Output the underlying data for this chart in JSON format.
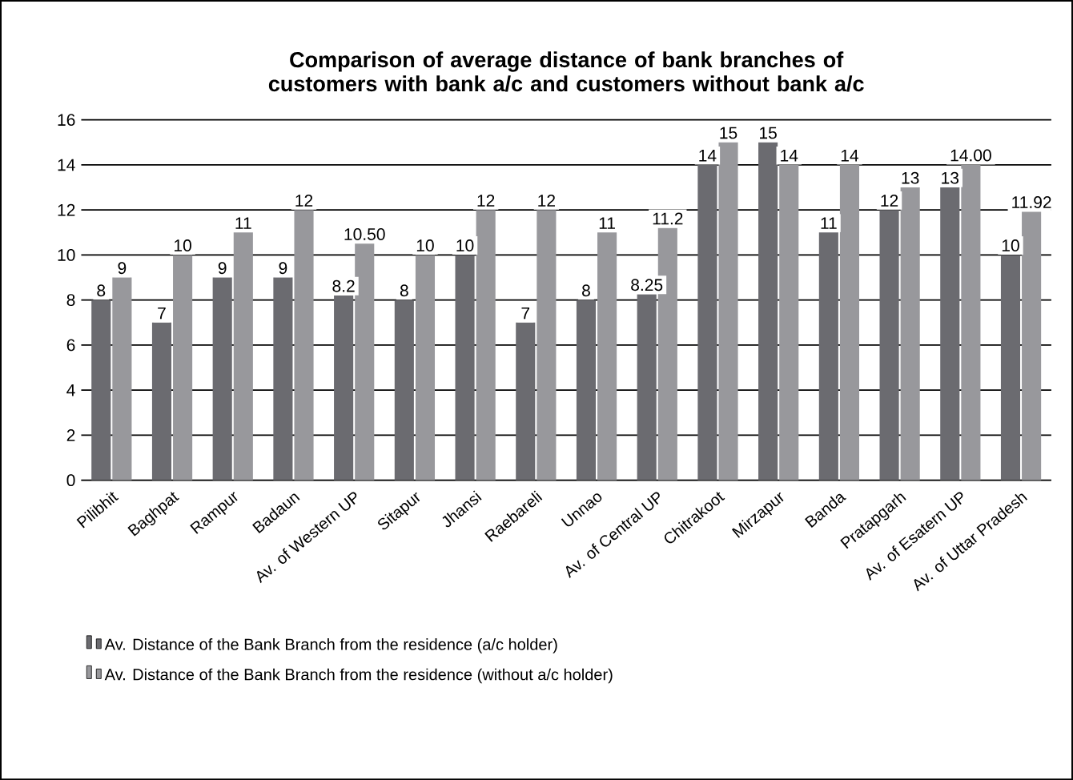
{
  "chart_data": {
    "type": "bar",
    "title": "Comparison of average distance of bank branches of customers with bank a/c and customers without bank a/c",
    "categories": [
      "Pilibhit",
      "Baghpat",
      "Rampur",
      "Badaun",
      "Av. of Western UP",
      "Sitapur",
      "Jhansi",
      "Raebareli",
      "Unnao",
      "Av. of Central UP",
      "Chitrakoot",
      "Mirzapur",
      "Banda",
      "Pratapgarh",
      "Av. of Esatern UP",
      "Av. of Uttar Pradesh"
    ],
    "series": [
      {
        "name": "Av. Distance of the Bank Branch from the residence (a/c holder)",
        "color": "#6b6b70",
        "values": [
          8,
          7,
          9,
          9,
          8.2,
          8,
          10,
          7,
          8,
          8.25,
          14,
          15,
          11,
          12,
          13,
          10
        ],
        "value_labels": [
          "8",
          "7",
          "9",
          "9",
          "8.2",
          "8",
          "10",
          "7",
          "8",
          "8.25",
          "14",
          "15",
          "11",
          "12",
          "13",
          "10"
        ]
      },
      {
        "name": "Av. Distance of the Bank Branch from the residence (without a/c holder)",
        "color": "#98989c",
        "values": [
          9,
          10,
          11,
          12,
          10.5,
          10,
          12,
          12,
          11,
          11.2,
          15,
          14,
          14,
          13,
          14,
          11.92
        ],
        "value_labels": [
          "9",
          "10",
          "11",
          "12",
          "10.50",
          "10",
          "12",
          "12",
          "11",
          "11.2",
          "15",
          "14",
          "14",
          "13",
          "14.00",
          "11.92"
        ]
      }
    ],
    "ylim": [
      0,
      16
    ],
    "yticks": [
      0,
      2,
      4,
      6,
      8,
      10,
      12,
      14,
      16
    ],
    "grid": "y",
    "legend": "bottom"
  }
}
